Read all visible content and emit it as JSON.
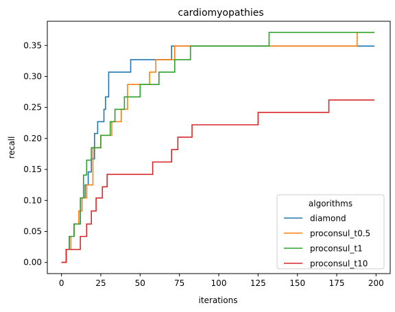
{
  "chart_data": {
    "type": "line",
    "title": "cardiomyopathies",
    "xlabel": "iterations",
    "ylabel": "recall",
    "xlim": [
      -9,
      209
    ],
    "ylim": [
      -0.018,
      0.389
    ],
    "xticks": [
      0,
      25,
      50,
      75,
      100,
      125,
      150,
      175,
      200
    ],
    "xtick_labels": [
      "0",
      "25",
      "50",
      "75",
      "100",
      "125",
      "150",
      "175",
      "200"
    ],
    "yticks": [
      0.0,
      0.05,
      0.1,
      0.15,
      0.2,
      0.25,
      0.3,
      0.35
    ],
    "ytick_labels": [
      "0.00",
      "0.05",
      "0.10",
      "0.15",
      "0.20",
      "0.25",
      "0.30",
      "0.35"
    ],
    "grid": false,
    "legend": {
      "title": "algorithms",
      "placement": "bottom-right"
    },
    "step": "post",
    "series": [
      {
        "name": "diamond",
        "color": "#1f77b4",
        "points": [
          [
            0,
            0
          ],
          [
            3,
            0.021
          ],
          [
            5,
            0.042
          ],
          [
            8,
            0.062
          ],
          [
            12,
            0.083
          ],
          [
            13,
            0.104
          ],
          [
            15,
            0.125
          ],
          [
            17,
            0.146
          ],
          [
            19,
            0.167
          ],
          [
            21,
            0.208
          ],
          [
            23,
            0.227
          ],
          [
            27,
            0.247
          ],
          [
            28,
            0.267
          ],
          [
            30,
            0.307
          ],
          [
            44,
            0.327
          ],
          [
            58,
            0.327
          ],
          [
            70,
            0.349
          ],
          [
            199,
            0.349
          ]
        ]
      },
      {
        "name": "proconsul_t0.5",
        "color": "#ff7f0e",
        "points": [
          [
            0,
            0
          ],
          [
            3,
            0.021
          ],
          [
            6,
            0.042
          ],
          [
            8,
            0.062
          ],
          [
            11,
            0.083
          ],
          [
            13,
            0.104
          ],
          [
            16,
            0.125
          ],
          [
            20,
            0.185
          ],
          [
            25,
            0.205
          ],
          [
            30,
            0.205
          ],
          [
            32,
            0.227
          ],
          [
            38,
            0.247
          ],
          [
            42,
            0.287
          ],
          [
            56,
            0.307
          ],
          [
            60,
            0.327
          ],
          [
            72,
            0.349
          ],
          [
            188,
            0.371
          ],
          [
            199,
            0.371
          ]
        ]
      },
      {
        "name": "proconsul_t1",
        "color": "#2ca02c",
        "points": [
          [
            0,
            0
          ],
          [
            3,
            0.021
          ],
          [
            5,
            0.042
          ],
          [
            8,
            0.062
          ],
          [
            12,
            0.104
          ],
          [
            14,
            0.141
          ],
          [
            16,
            0.165
          ],
          [
            19,
            0.185
          ],
          [
            25,
            0.205
          ],
          [
            31,
            0.227
          ],
          [
            34,
            0.247
          ],
          [
            40,
            0.267
          ],
          [
            50,
            0.287
          ],
          [
            62,
            0.307
          ],
          [
            72,
            0.327
          ],
          [
            82,
            0.349
          ],
          [
            132,
            0.371
          ],
          [
            199,
            0.371
          ]
        ]
      },
      {
        "name": "proconsul_t10",
        "color": "#d62728",
        "points": [
          [
            0,
            0
          ],
          [
            3,
            0.021
          ],
          [
            8,
            0.021
          ],
          [
            12,
            0.042
          ],
          [
            16,
            0.062
          ],
          [
            19,
            0.083
          ],
          [
            22,
            0.104
          ],
          [
            26,
            0.122
          ],
          [
            29,
            0.142
          ],
          [
            56,
            0.142
          ],
          [
            58,
            0.162
          ],
          [
            70,
            0.182
          ],
          [
            74,
            0.202
          ],
          [
            83,
            0.222
          ],
          [
            125,
            0.242
          ],
          [
            170,
            0.262
          ],
          [
            199,
            0.262
          ]
        ]
      }
    ]
  }
}
